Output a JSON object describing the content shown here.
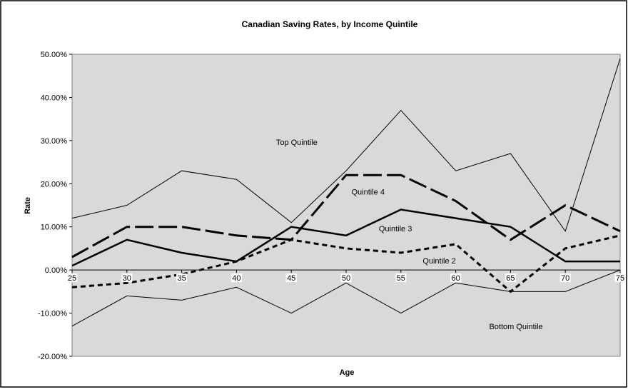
{
  "chart_data": {
    "type": "line",
    "title": "Canadian Saving Rates, by Income Quintile",
    "xlabel": "Age",
    "ylabel": "Rate",
    "x": [
      25,
      30,
      35,
      40,
      45,
      50,
      55,
      60,
      65,
      70,
      75
    ],
    "x_tick_labels": [
      "25",
      "30",
      "35",
      "40",
      "45",
      "50",
      "55",
      "60",
      "65",
      "70",
      "75"
    ],
    "ylim": [
      -0.2,
      0.5
    ],
    "y_ticks": [
      0.5,
      0.4,
      0.3,
      0.2,
      0.1,
      0.0,
      -0.1,
      -0.2
    ],
    "y_tick_labels": [
      "50.00%",
      "40.00%",
      "30.00%",
      "20.00%",
      "10.00%",
      "0.00%",
      "-10.00%",
      "-20.00%"
    ],
    "plot_background": "#d9d9d9",
    "line_color": "#000000",
    "gridlines": false,
    "legend": "none (series labelled directly on the plot)",
    "series": [
      {
        "name": "Top Quintile",
        "style": "thin-solid",
        "values": [
          0.12,
          0.15,
          0.23,
          0.21,
          0.11,
          0.23,
          0.37,
          0.23,
          0.27,
          0.09,
          0.49
        ]
      },
      {
        "name": "Quintile 4",
        "style": "long-dash",
        "values": [
          0.03,
          0.1,
          0.1,
          0.08,
          0.07,
          0.22,
          0.22,
          0.16,
          0.07,
          0.15,
          0.09
        ]
      },
      {
        "name": "Quintile 3",
        "style": "thick-solid",
        "values": [
          0.01,
          0.07,
          0.04,
          0.02,
          0.1,
          0.08,
          0.14,
          0.12,
          0.1,
          0.02,
          0.02
        ]
      },
      {
        "name": "Quintile 2",
        "style": "short-dash",
        "values": [
          -0.04,
          -0.03,
          -0.01,
          0.02,
          0.07,
          0.05,
          0.04,
          0.06,
          -0.05,
          0.05,
          0.08
        ]
      },
      {
        "name": "Bottom Quintile",
        "style": "thin-solid",
        "values": [
          -0.13,
          -0.06,
          -0.07,
          -0.04,
          -0.1,
          -0.03,
          -0.1,
          -0.03,
          -0.05,
          -0.05,
          0.0
        ]
      }
    ]
  }
}
